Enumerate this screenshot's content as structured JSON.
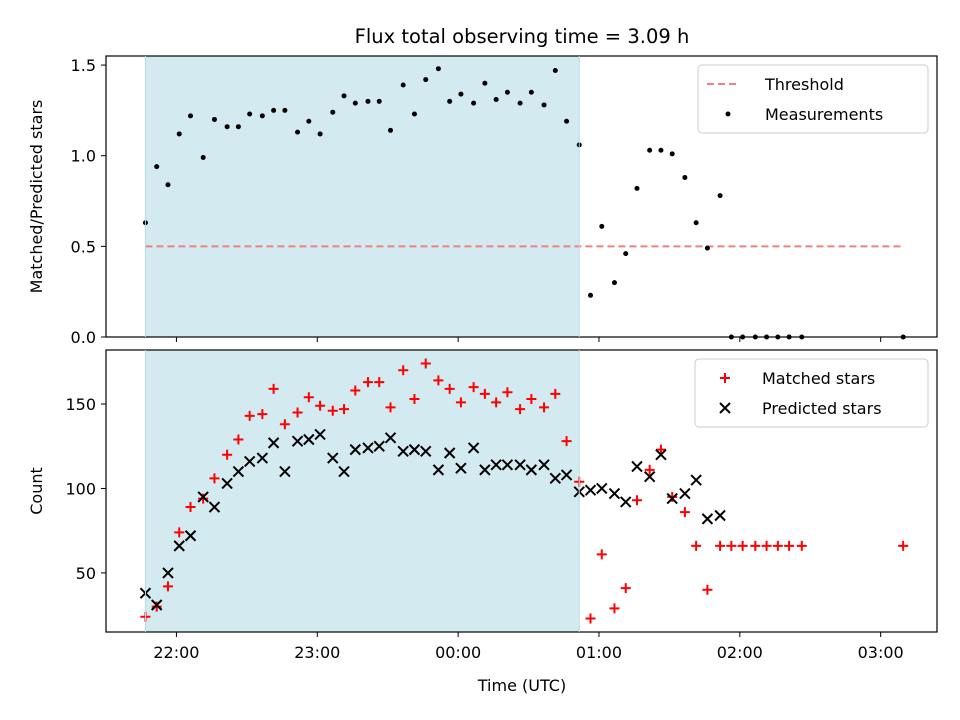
{
  "chart_data": {
    "type": "scatter",
    "title": "Flux total observing time = 3.09 h",
    "xlabel": "Time (UTC)",
    "x_unit": "hours UTC (values past 24 are after midnight)",
    "xlim": [
      21.5,
      27.4
    ],
    "xticks": [
      22,
      23,
      24,
      25,
      26,
      27
    ],
    "xticklabels": [
      "22:00",
      "23:00",
      "00:00",
      "01:00",
      "02:00",
      "03:00"
    ],
    "shaded_interval": [
      21.78,
      24.86
    ],
    "shade_color": "#d2eaf0",
    "panels": [
      {
        "name": "ratio",
        "ylabel": "Matched/Predicted stars",
        "ylim": [
          0,
          1.55
        ],
        "yticks": [
          0.0,
          0.5,
          1.0,
          1.5
        ],
        "yticklabels": [
          "0.0",
          "0.5",
          "1.0",
          "1.5"
        ],
        "legend_position": "top-right",
        "threshold": {
          "name": "Threshold",
          "value": 0.5,
          "x_range": [
            21.78,
            27.16
          ],
          "color": "#f08080"
        },
        "series": [
          {
            "name": "Measurements",
            "marker": "dot",
            "color": "#000000",
            "x": [
              21.78,
              21.86,
              21.94,
              22.02,
              22.1,
              22.19,
              22.27,
              22.36,
              22.44,
              22.52,
              22.61,
              22.69,
              22.77,
              22.86,
              22.94,
              23.02,
              23.11,
              23.19,
              23.27,
              23.36,
              23.44,
              23.52,
              23.61,
              23.69,
              23.77,
              23.86,
              23.94,
              24.02,
              24.11,
              24.19,
              24.27,
              24.35,
              24.44,
              24.52,
              24.61,
              24.69,
              24.77,
              24.86,
              24.94,
              25.02,
              25.11,
              25.19,
              25.27,
              25.36,
              25.44,
              25.52,
              25.61,
              25.69,
              25.77,
              25.86,
              25.94,
              26.02,
              26.11,
              26.19,
              26.27,
              26.35,
              26.44,
              27.16
            ],
            "y": [
              0.63,
              0.94,
              0.84,
              1.12,
              1.22,
              0.99,
              1.2,
              1.16,
              1.16,
              1.23,
              1.22,
              1.25,
              1.25,
              1.13,
              1.19,
              1.12,
              1.24,
              1.33,
              1.29,
              1.3,
              1.3,
              1.14,
              1.39,
              1.23,
              1.42,
              1.48,
              1.3,
              1.34,
              1.29,
              1.4,
              1.31,
              1.35,
              1.29,
              1.35,
              1.28,
              1.47,
              1.19,
              1.06,
              0.23,
              0.61,
              0.3,
              0.46,
              0.82,
              1.03,
              1.03,
              1.01,
              0.88,
              0.63,
              0.49,
              0.78,
              0.0,
              0.0,
              0.0,
              0.0,
              0.0,
              0.0,
              0.0,
              0.0
            ]
          }
        ]
      },
      {
        "name": "counts",
        "ylabel": "Count",
        "ylim": [
          15,
          182
        ],
        "yticks": [
          50,
          100,
          150
        ],
        "yticklabels": [
          "50",
          "100",
          "150"
        ],
        "legend_position": "top-right",
        "series": [
          {
            "name": "Matched stars",
            "marker": "plus",
            "color": "#ff0000",
            "x": [
              21.78,
              21.86,
              21.94,
              22.02,
              22.1,
              22.19,
              22.27,
              22.36,
              22.44,
              22.52,
              22.61,
              22.69,
              22.77,
              22.86,
              22.94,
              23.02,
              23.11,
              23.19,
              23.27,
              23.36,
              23.44,
              23.52,
              23.61,
              23.69,
              23.77,
              23.86,
              23.94,
              24.02,
              24.11,
              24.19,
              24.27,
              24.35,
              24.44,
              24.52,
              24.61,
              24.69,
              24.77,
              24.86,
              24.94,
              25.02,
              25.11,
              25.19,
              25.27,
              25.36,
              25.44,
              25.52,
              25.61,
              25.69,
              25.77,
              25.86,
              25.94,
              26.02,
              26.11,
              26.19,
              26.27,
              26.35,
              26.44,
              27.16
            ],
            "y": [
              24,
              30,
              42,
              74,
              89,
              94,
              106,
              120,
              129,
              143,
              144,
              159,
              138,
              145,
              154,
              149,
              146,
              147,
              158,
              163,
              163,
              148,
              170,
              153,
              174,
              164,
              159,
              151,
              160,
              156,
              151,
              157,
              147,
              153,
              148,
              156,
              128,
              104,
              23,
              61,
              29,
              41,
              93,
              111,
              123,
              95,
              86,
              66,
              40,
              66,
              66,
              66,
              66,
              66,
              66,
              66,
              66,
              66
            ]
          },
          {
            "name": "Predicted stars",
            "marker": "x",
            "color": "#000000",
            "x": [
              21.78,
              21.86,
              21.94,
              22.02,
              22.1,
              22.19,
              22.27,
              22.36,
              22.44,
              22.52,
              22.61,
              22.69,
              22.77,
              22.86,
              22.94,
              23.02,
              23.11,
              23.19,
              23.27,
              23.36,
              23.44,
              23.52,
              23.61,
              23.69,
              23.77,
              23.86,
              23.94,
              24.02,
              24.11,
              24.19,
              24.27,
              24.35,
              24.44,
              24.52,
              24.61,
              24.69,
              24.77,
              24.86,
              24.94,
              25.02,
              25.11,
              25.19,
              25.27,
              25.36,
              25.44,
              25.52,
              25.61,
              25.69,
              25.77,
              25.86
            ],
            "y": [
              38,
              31,
              50,
              66,
              72,
              95,
              89,
              103,
              110,
              116,
              118,
              127,
              110,
              128,
              129,
              132,
              118,
              110,
              123,
              124,
              125,
              130,
              122,
              123,
              122,
              111,
              121,
              112,
              124,
              111,
              114,
              114,
              114,
              111,
              114,
              106,
              108,
              98,
              99,
              100,
              97,
              92,
              113,
              107,
              120,
              94,
              97,
              105,
              82,
              84
            ]
          }
        ]
      }
    ]
  }
}
